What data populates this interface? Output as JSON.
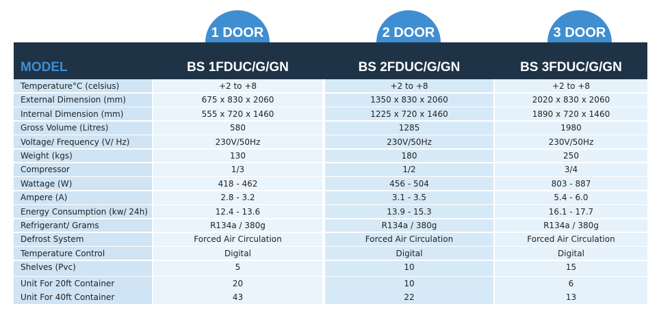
{
  "header": {
    "tabs": [
      "1 DOOR",
      "2 DOOR",
      "3 DOOR"
    ],
    "model_label": "MODEL",
    "models": [
      "BS 1FDUC/G/GN",
      "BS 2FDUC/G/GN",
      "BS 3FDUC/G/GN"
    ]
  },
  "table": {
    "rows": [
      [
        "Temperature°C (celsius)",
        "+2 to +8",
        "+2 to +8",
        "+2 to +8"
      ],
      [
        "External Dimension (mm)",
        "675 x 830 x 2060",
        "1350 x 830 x 2060",
        "2020 x 830 x 2060"
      ],
      [
        "Internal Dimension (mm)",
        "555 x 720 x 1460",
        "1225 x 720 x 1460",
        "1890 x 720 x 1460"
      ],
      [
        "Gross Volume (Litres)",
        "580",
        "1285",
        "1980"
      ],
      [
        "Voltage/ Frequency (V/ Hz)",
        "230V/50Hz",
        "230V/50Hz",
        "230V/50Hz"
      ],
      [
        "Weight (kgs)",
        "130",
        "180",
        "250"
      ],
      [
        "Compressor",
        "1/3",
        "1/2",
        "3/4"
      ],
      [
        "Wattage (W)",
        "418 - 462",
        "456 - 504",
        "803 - 887"
      ],
      [
        "Ampere (A)",
        "2.8 - 3.2",
        "3.1 - 3.5",
        "5.4 - 6.0"
      ],
      [
        "Energy Consumption (kw/ 24h)",
        "12.4 - 13.6",
        "13.9 - 15.3",
        "16.1 - 17.7"
      ],
      [
        "Refrigerant/ Grams",
        "R134a / 380g",
        "R134a / 380g",
        "R134a / 380g"
      ],
      [
        "Defrost System",
        "Forced Air Circulation",
        "Forced Air Circulation",
        "Forced Air Circulation"
      ],
      [
        "Temperature Control",
        "Digital",
        "Digital",
        "Digital"
      ],
      [
        "Shelves (Pvc)",
        "5",
        "10",
        "15"
      ],
      [
        "Unit For 20ft Container",
        "20",
        "10",
        "6"
      ],
      [
        "Unit For 40ft Container",
        "43",
        "22",
        "13"
      ]
    ]
  }
}
